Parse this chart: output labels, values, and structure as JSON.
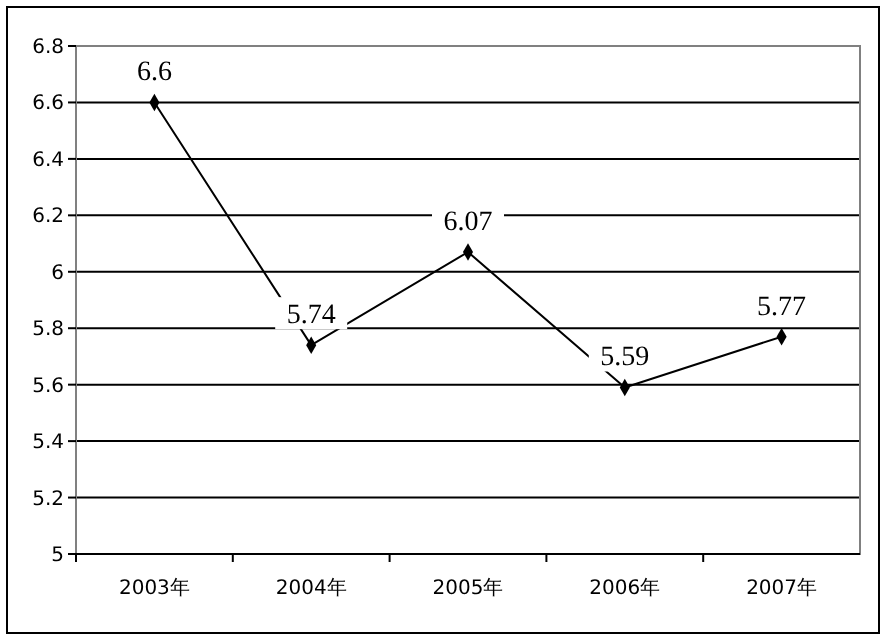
{
  "chart_data": {
    "type": "line",
    "categories": [
      "2003年",
      "2004年",
      "2005年",
      "2006年",
      "2007年"
    ],
    "series": [
      {
        "color": "#000000",
        "values": [
          6.6,
          5.74,
          6.07,
          5.59,
          5.77
        ]
      }
    ],
    "ylim": [
      5,
      6.8
    ],
    "yticks": [
      5,
      5.2,
      5.4,
      5.6,
      5.8,
      6,
      6.2,
      6.4,
      6.6,
      6.8
    ],
    "grid": "y",
    "marker": "diamond",
    "line_style": "solid",
    "data_labels": true
  }
}
